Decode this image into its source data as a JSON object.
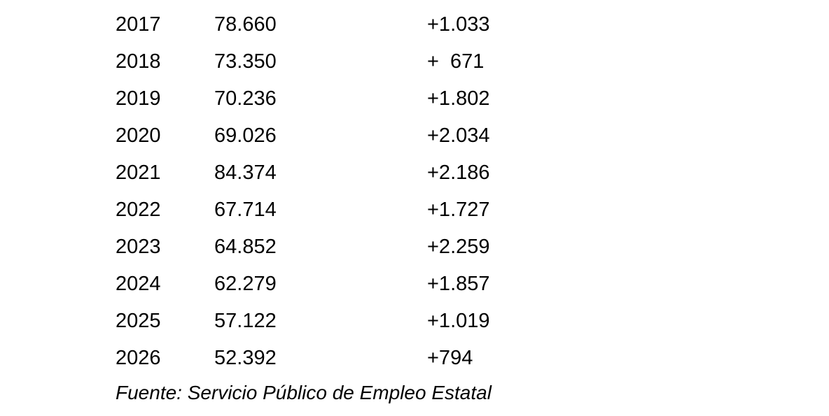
{
  "table": {
    "rows": [
      {
        "year": "2017",
        "value": "78.660",
        "delta": "+1.033"
      },
      {
        "year": "2018",
        "value": "73.350",
        "delta": "+  671"
      },
      {
        "year": "2019",
        "value": "70.236",
        "delta": "+1.802"
      },
      {
        "year": "2020",
        "value": "69.026",
        "delta": "+2.034"
      },
      {
        "year": "2021",
        "value": "84.374",
        "delta": "+2.186"
      },
      {
        "year": "2022",
        "value": "67.714",
        "delta": "+1.727"
      },
      {
        "year": "2023",
        "value": "64.852",
        "delta": "+2.259"
      },
      {
        "year": "2024",
        "value": "62.279",
        "delta": "+1.857"
      },
      {
        "year": "2025",
        "value": "57.122",
        "delta": "+1.019"
      },
      {
        "year": "2026",
        "value": "52.392",
        "delta": "+794"
      }
    ]
  },
  "footer": {
    "source": "Fuente: Servicio Público de Empleo Estatal"
  },
  "colors": {
    "text": "#000000",
    "background": "#ffffff"
  }
}
